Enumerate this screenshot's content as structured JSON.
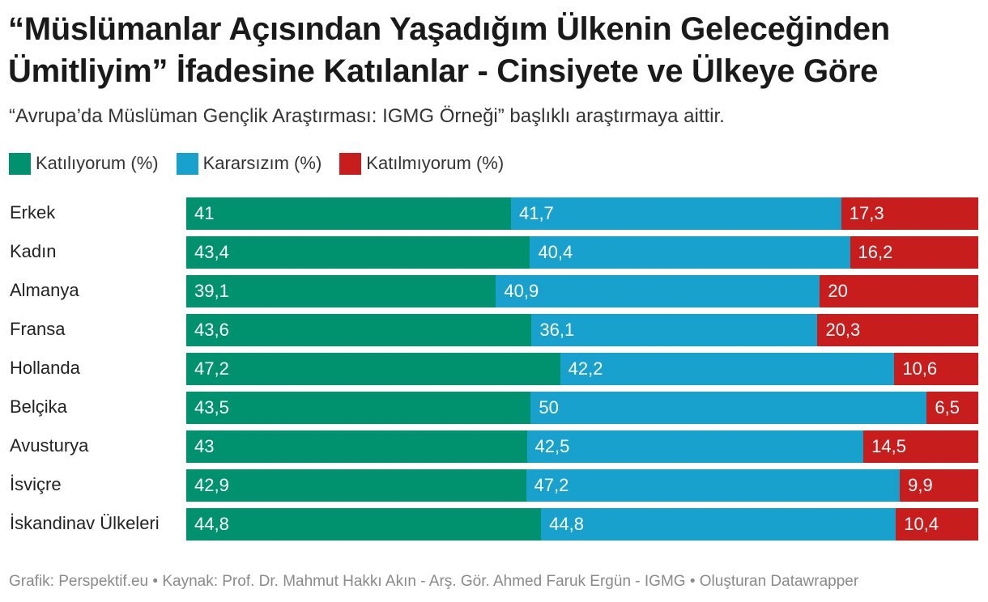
{
  "chart_data": {
    "type": "bar",
    "orientation": "horizontal",
    "stacked": true,
    "title": "“Müslümanlar Açısından Yaşadığım Ülkenin Geleceğinden Ümitliyim” İfadesine Katılanlar - Cinsiyete ve Ülkeye Göre",
    "subtitle": "“Avrupa’da Müslüman Gençlik Araştırması: IGMG Örneği” başlıklı araştırmaya aittir.",
    "footer": "Grafik: Perspektif.eu • Kaynak: Prof. Dr. Mahmut Hakkı Akın - Arş. Gör. Ahmed Faruk Ergün - IGMG • Oluşturan Datawrapper",
    "categories": [
      "Erkek",
      "Kadın",
      "Almanya",
      "Fransa",
      "Hollanda",
      "Belçika",
      "Avusturya",
      "İsviçre",
      "İskandinav Ülkeleri"
    ],
    "series": [
      {
        "name": "Katılıyorum (%)",
        "color": "#00916e",
        "values": [
          41,
          43.4,
          39.1,
          43.6,
          47.2,
          43.5,
          43,
          42.9,
          44.8
        ],
        "labels": [
          "41",
          "43,4",
          "39,1",
          "43,6",
          "47,2",
          "43,5",
          "43",
          "42,9",
          "44,8"
        ]
      },
      {
        "name": "Kararsızım (%)",
        "color": "#18a1cd",
        "values": [
          41.7,
          40.4,
          40.9,
          36.1,
          42.2,
          50,
          42.5,
          47.2,
          44.8
        ],
        "labels": [
          "41,7",
          "40,4",
          "40,9",
          "36,1",
          "42,2",
          "50",
          "42,5",
          "47,2",
          "44,8"
        ]
      },
      {
        "name": "Katılmıyorum (%)",
        "color": "#c71e1d",
        "values": [
          17.3,
          16.2,
          20,
          20.3,
          10.6,
          6.5,
          14.5,
          9.9,
          10.4
        ],
        "labels": [
          "17,3",
          "16,2",
          "20",
          "20,3",
          "10,6",
          "6,5",
          "14,5",
          "9,9",
          "10,4"
        ]
      }
    ]
  }
}
